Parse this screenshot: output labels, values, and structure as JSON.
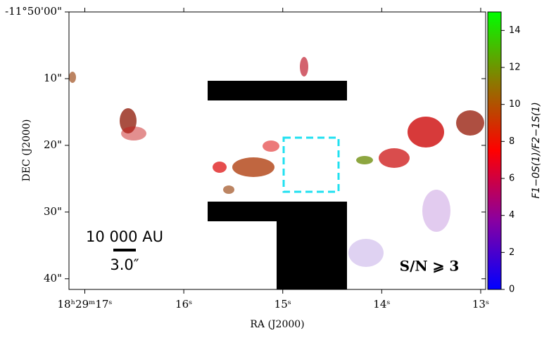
{
  "chart_data": {
    "type": "image",
    "xlabel": "RA (J2000)",
    "ylabel": "DEC (J2000)",
    "xlim": [
      17.16,
      12.95
    ],
    "xticks": [
      {
        "value": 17,
        "label": "18ʰ29ᵐ17ˢ"
      },
      {
        "value": 16,
        "label": "16ˢ"
      },
      {
        "value": 15,
        "label": "15ˢ"
      },
      {
        "value": 14,
        "label": "14ˢ"
      },
      {
        "value": 13,
        "label": "13ˢ"
      }
    ],
    "ylim": [
      0,
      41.6
    ],
    "yticks": [
      {
        "value": 0,
        "label": "-11°50'00\""
      },
      {
        "value": 10,
        "label": "10\""
      },
      {
        "value": 20,
        "label": "20\""
      },
      {
        "value": 30,
        "label": "30\""
      },
      {
        "value": 40,
        "label": "40\""
      }
    ],
    "colorbar": {
      "label": "F1−0S(1)/F2−1S(1)",
      "lim": [
        0,
        15
      ],
      "ticks": [
        0,
        2,
        4,
        6,
        8,
        10,
        12,
        14
      ],
      "colormap": [
        "#0000ff",
        "#8a00a0",
        "#ff0000",
        "#8a7a00",
        "#00ff00"
      ]
    },
    "scale_bar": {
      "length_label": "10 000 AU",
      "angle_label": "3.0″"
    },
    "annotation": "S/N ⩾ 3"
  }
}
